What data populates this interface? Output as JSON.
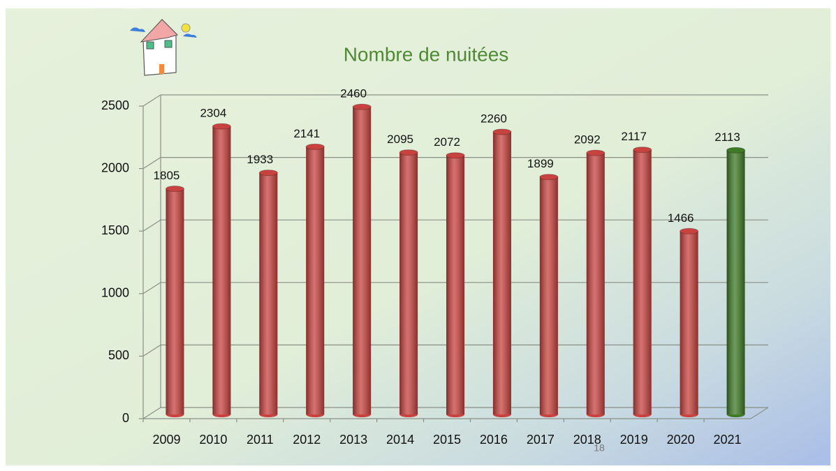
{
  "chart_data": {
    "type": "bar",
    "title": "Nombre de nuitées",
    "categories": [
      "2009",
      "2010",
      "2011",
      "2012",
      "2013",
      "2014",
      "2015",
      "2016",
      "2017",
      "2018",
      "2019",
      "2020",
      "2021"
    ],
    "values": [
      1805,
      2304,
      1933,
      2141,
      2460,
      2095,
      2072,
      2260,
      1899,
      2092,
      2117,
      1466,
      2113
    ],
    "colors": [
      "#c8433f",
      "#c8433f",
      "#c8433f",
      "#c8433f",
      "#c8433f",
      "#c8433f",
      "#c8433f",
      "#c8433f",
      "#c8433f",
      "#c8433f",
      "#c8433f",
      "#c8433f",
      "#3f7a26"
    ],
    "ylim": [
      0,
      2500
    ],
    "yticks": [
      0,
      500,
      1000,
      1500,
      2000,
      2500
    ],
    "grid": true
  },
  "slide": {
    "page_number": "18"
  }
}
